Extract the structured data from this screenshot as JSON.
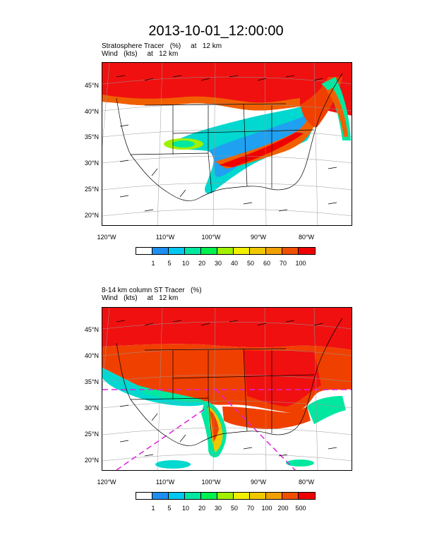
{
  "title": "2013-10-01_12:00:00",
  "panels": [
    {
      "subtitle_line1": "Stratosphere Tracer   (%)     at   12 km",
      "subtitle_line2": "Wind   (kts)     at   12 km",
      "lat_labels": [
        "45°N",
        "40°N",
        "35°N",
        "30°N",
        "25°N",
        "20°N"
      ],
      "lon_labels": [
        "120°W",
        "110°W",
        "100°W",
        "90°W",
        "80°W"
      ],
      "colorbar_labels": [
        "1",
        "5",
        "10",
        "20",
        "30",
        "40",
        "50",
        "60",
        "70",
        "100"
      ]
    },
    {
      "subtitle_line1": "8-14 km column ST Tracer   (%)",
      "subtitle_line2": "Wind   (kts)     at   12 km",
      "lat_labels": [
        "45°N",
        "40°N",
        "35°N",
        "30°N",
        "25°N",
        "20°N"
      ],
      "lon_labels": [
        "120°W",
        "110°W",
        "100°W",
        "90°W",
        "80°W"
      ],
      "colorbar_labels": [
        "1",
        "5",
        "10",
        "20",
        "30",
        "50",
        "70",
        "100",
        "200",
        "500"
      ]
    }
  ],
  "colorbar_colors": [
    "#ffffff",
    "#1e8ef0",
    "#00c8f0",
    "#00e8a0",
    "#00f050",
    "#a0f000",
    "#f0f000",
    "#f0c800",
    "#f0a000",
    "#f05000",
    "#f00000"
  ]
}
